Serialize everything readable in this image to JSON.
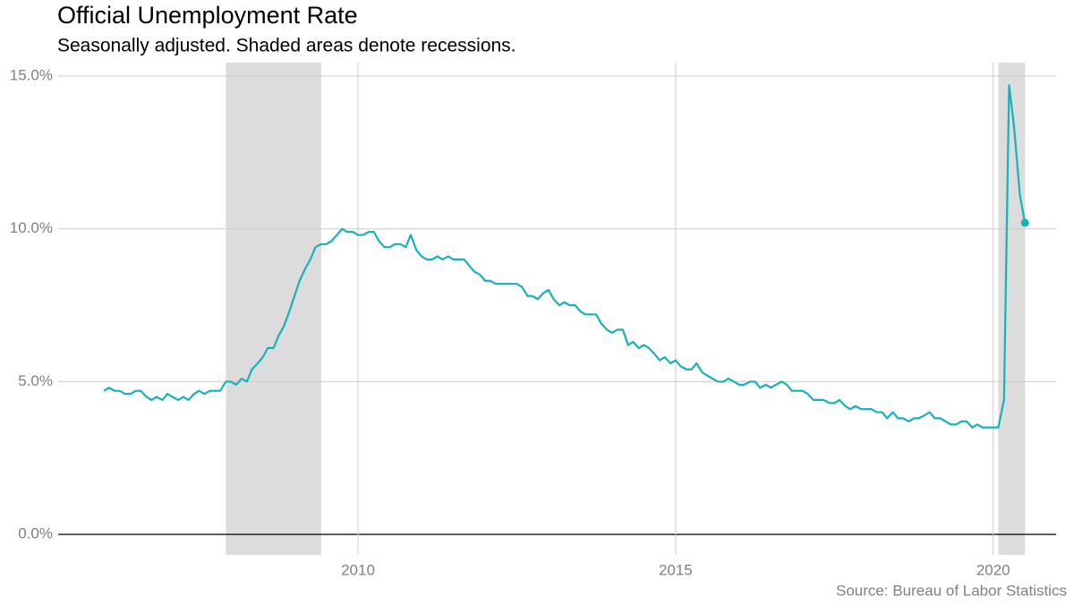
{
  "chart_data": {
    "type": "line",
    "title": "Official Unemployment Rate",
    "subtitle": "Seasonally adjusted. Shaded areas denote recessions.",
    "source": "Source: Bureau of Labor Statistics",
    "x": [
      2006,
      2006.08,
      2006.17,
      2006.25,
      2006.33,
      2006.42,
      2006.5,
      2006.58,
      2006.67,
      2006.75,
      2006.83,
      2006.92,
      2007,
      2007.08,
      2007.17,
      2007.25,
      2007.33,
      2007.42,
      2007.5,
      2007.58,
      2007.67,
      2007.75,
      2007.83,
      2007.92,
      2008,
      2008.08,
      2008.17,
      2008.25,
      2008.33,
      2008.42,
      2008.5,
      2008.58,
      2008.67,
      2008.75,
      2008.83,
      2008.92,
      2009,
      2009.08,
      2009.17,
      2009.25,
      2009.33,
      2009.42,
      2009.5,
      2009.58,
      2009.67,
      2009.75,
      2009.83,
      2009.92,
      2010,
      2010.08,
      2010.17,
      2010.25,
      2010.33,
      2010.42,
      2010.5,
      2010.58,
      2010.67,
      2010.75,
      2010.83,
      2010.92,
      2011,
      2011.08,
      2011.17,
      2011.25,
      2011.33,
      2011.42,
      2011.5,
      2011.58,
      2011.67,
      2011.75,
      2011.83,
      2011.92,
      2012,
      2012.08,
      2012.17,
      2012.25,
      2012.33,
      2012.42,
      2012.5,
      2012.58,
      2012.67,
      2012.75,
      2012.83,
      2012.92,
      2013,
      2013.08,
      2013.17,
      2013.25,
      2013.33,
      2013.42,
      2013.5,
      2013.58,
      2013.67,
      2013.75,
      2013.83,
      2013.92,
      2014,
      2014.08,
      2014.17,
      2014.25,
      2014.33,
      2014.42,
      2014.5,
      2014.58,
      2014.67,
      2014.75,
      2014.83,
      2014.92,
      2015,
      2015.08,
      2015.17,
      2015.25,
      2015.33,
      2015.42,
      2015.5,
      2015.58,
      2015.67,
      2015.75,
      2015.83,
      2015.92,
      2016,
      2016.08,
      2016.17,
      2016.25,
      2016.33,
      2016.42,
      2016.5,
      2016.58,
      2016.67,
      2016.75,
      2016.83,
      2016.92,
      2017,
      2017.08,
      2017.17,
      2017.25,
      2017.33,
      2017.42,
      2017.5,
      2017.58,
      2017.67,
      2017.75,
      2017.83,
      2017.92,
      2018,
      2018.08,
      2018.17,
      2018.25,
      2018.33,
      2018.42,
      2018.5,
      2018.58,
      2018.67,
      2018.75,
      2018.83,
      2018.92,
      2019,
      2019.08,
      2019.17,
      2019.25,
      2019.33,
      2019.42,
      2019.5,
      2019.58,
      2019.67,
      2019.75,
      2019.83,
      2019.92,
      2020,
      2020.08,
      2020.17,
      2020.25,
      2020.33,
      2020.42,
      2020.5
    ],
    "series": [
      {
        "color": "#17b1b8",
        "values": [
          4.7,
          4.8,
          4.7,
          4.7,
          4.6,
          4.6,
          4.7,
          4.7,
          4.5,
          4.4,
          4.5,
          4.4,
          4.6,
          4.5,
          4.4,
          4.5,
          4.4,
          4.6,
          4.7,
          4.6,
          4.7,
          4.7,
          4.7,
          5.0,
          5.0,
          4.9,
          5.1,
          5.0,
          5.4,
          5.6,
          5.8,
          6.1,
          6.1,
          6.5,
          6.8,
          7.3,
          7.8,
          8.3,
          8.7,
          9.0,
          9.4,
          9.5,
          9.5,
          9.6,
          9.8,
          10.0,
          9.9,
          9.9,
          9.8,
          9.8,
          9.9,
          9.9,
          9.6,
          9.4,
          9.4,
          9.5,
          9.5,
          9.4,
          9.8,
          9.3,
          9.1,
          9.0,
          9.0,
          9.1,
          9.0,
          9.1,
          9.0,
          9.0,
          9.0,
          8.8,
          8.6,
          8.5,
          8.3,
          8.3,
          8.2,
          8.2,
          8.2,
          8.2,
          8.2,
          8.1,
          7.8,
          7.8,
          7.7,
          7.9,
          8.0,
          7.7,
          7.5,
          7.6,
          7.5,
          7.5,
          7.3,
          7.2,
          7.2,
          7.2,
          6.9,
          6.7,
          6.6,
          6.7,
          6.7,
          6.2,
          6.3,
          6.1,
          6.2,
          6.1,
          5.9,
          5.7,
          5.8,
          5.6,
          5.7,
          5.5,
          5.4,
          5.4,
          5.6,
          5.3,
          5.2,
          5.1,
          5.0,
          5.0,
          5.1,
          5.0,
          4.9,
          4.9,
          5.0,
          5.0,
          4.8,
          4.9,
          4.8,
          4.9,
          5.0,
          4.9,
          4.7,
          4.7,
          4.7,
          4.6,
          4.4,
          4.4,
          4.4,
          4.3,
          4.3,
          4.4,
          4.2,
          4.1,
          4.2,
          4.1,
          4.1,
          4.1,
          4.0,
          4.0,
          3.8,
          4.0,
          3.8,
          3.8,
          3.7,
          3.8,
          3.8,
          3.9,
          4.0,
          3.8,
          3.8,
          3.7,
          3.6,
          3.6,
          3.7,
          3.7,
          3.5,
          3.6,
          3.5,
          3.5,
          3.5,
          3.5,
          4.4,
          14.7,
          13.3,
          11.1,
          10.2
        ]
      }
    ],
    "recessions": [
      [
        2007.92,
        2009.42
      ],
      [
        2020.08,
        2020.5
      ]
    ],
    "recession_color": "#dcdcdc",
    "xlim": [
      2005.28,
      2020.99
    ],
    "xticks": [
      2010,
      2015,
      2020
    ],
    "ylim": [
      -0.67,
      15.44
    ],
    "yticks": [
      {
        "value": 0,
        "label": "0.0%"
      },
      {
        "value": 5,
        "label": "5.0%"
      },
      {
        "value": 10,
        "label": "10.0%"
      },
      {
        "value": 15,
        "label": "15.0%"
      }
    ],
    "grid": true
  }
}
